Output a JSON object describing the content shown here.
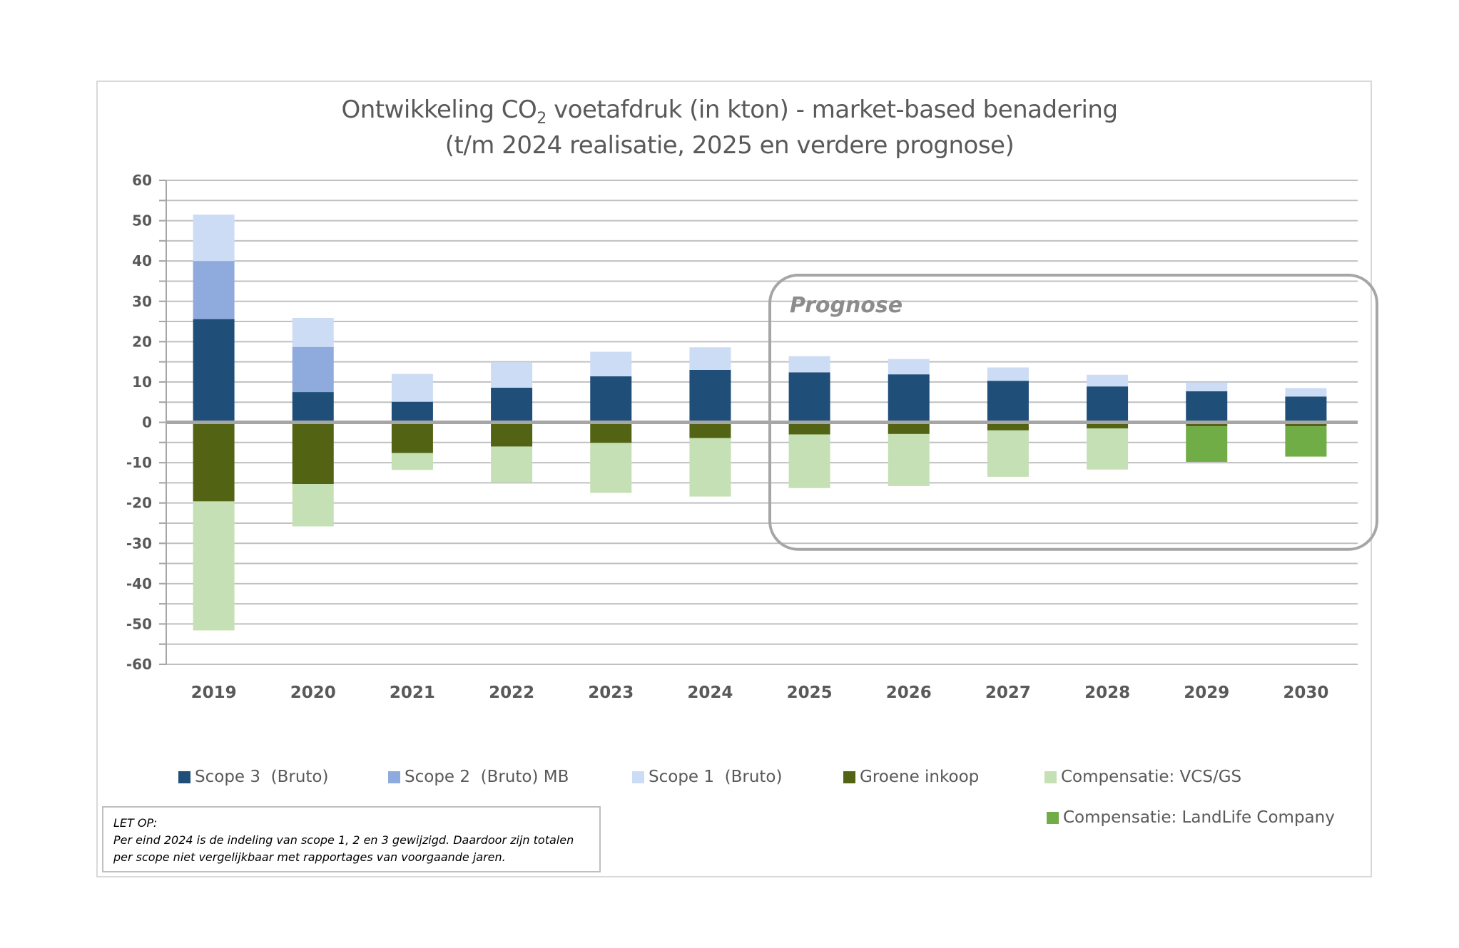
{
  "title": {
    "line1_pre": "Ontwikkeling CO",
    "line1_sub": "2",
    "line1_post": " voetafdruk  (in kton) - market-based benadering",
    "line2": "(t/m 2024 realisatie, 2025 en verdere prognose)"
  },
  "prognose_label": "Prognose",
  "note": {
    "heading": "LET OP:",
    "line1": "Per eind 2024 is de indeling van scope 1, 2  en 3 gewijzigd. Daardoor zijn totalen",
    "line2": "per scope niet vergelijkbaar met rapportages van voorgaande jaren."
  },
  "chart_data": {
    "type": "bar",
    "stacked": true,
    "title": "Ontwikkeling CO2 voetafdruk (in kton) - market-based benadering (t/m 2024 realisatie, 2025 en verdere prognose)",
    "xlabel": "",
    "ylabel": "",
    "ylim": [
      -60,
      60
    ],
    "yticks": [
      60,
      50,
      40,
      30,
      20,
      10,
      0,
      -10,
      -20,
      -30,
      -40,
      -50,
      -60
    ],
    "grid": true,
    "legend_position": "bottom",
    "categories": [
      "2019",
      "2020",
      "2021",
      "2022",
      "2023",
      "2024",
      "2025",
      "2026",
      "2027",
      "2028",
      "2029",
      "2030"
    ],
    "annotation": {
      "label": "Prognose",
      "from": "2025",
      "to": "2030"
    },
    "series": [
      {
        "name": "Scope 3  (Bruto)",
        "color": "#1F4E79",
        "values": [
          25.6,
          7.5,
          5.1,
          8.6,
          11.4,
          13.0,
          12.4,
          11.9,
          10.3,
          8.9,
          7.7,
          6.4
        ]
      },
      {
        "name": "Scope 2  (Bruto) MB",
        "color": "#8FAADC",
        "values": [
          14.4,
          11.2,
          0,
          0,
          0,
          0,
          0,
          0,
          0,
          0,
          0,
          0
        ]
      },
      {
        "name": "Scope 1  (Bruto)",
        "color": "#CDDCF5",
        "values": [
          11.5,
          7.2,
          6.9,
          6.3,
          6.1,
          5.6,
          4.0,
          3.8,
          3.3,
          2.9,
          2.2,
          2.1
        ]
      },
      {
        "name": "Groene inkoop",
        "color": "#526313",
        "values": [
          -19.6,
          -15.3,
          -7.6,
          -6.0,
          -5.1,
          -3.9,
          -3.0,
          -2.9,
          -2.0,
          -1.5,
          -1.0,
          -1.0
        ]
      },
      {
        "name": "Compensatie: VCS/GS",
        "color": "#C5E0B4",
        "values": [
          -32.0,
          -10.5,
          -4.2,
          -8.9,
          -12.4,
          -14.5,
          -13.3,
          -12.9,
          -11.5,
          -10.2,
          0,
          0
        ]
      },
      {
        "name": "Compensatie: LandLife Company",
        "color": "#70AD47",
        "values": [
          0,
          0,
          0,
          0,
          0,
          0,
          0,
          0,
          0,
          0,
          -8.8,
          -7.5
        ]
      }
    ]
  }
}
